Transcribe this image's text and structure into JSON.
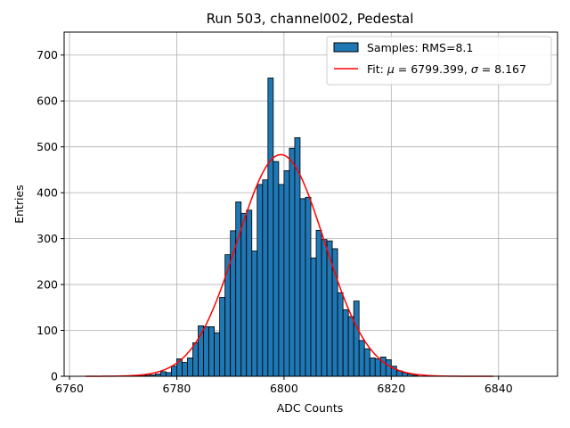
{
  "chart_data": {
    "type": "bar",
    "title": "Run 503, channel002, Pedestal",
    "xlabel": "ADC Counts",
    "ylabel": "Entries",
    "xlim": [
      6759,
      6851
    ],
    "ylim": [
      0,
      750
    ],
    "xticks": [
      6760,
      6780,
      6800,
      6820,
      6840
    ],
    "yticks": [
      0,
      100,
      200,
      300,
      400,
      500,
      600,
      700
    ],
    "grid": true,
    "legend_position": "top-right",
    "bar_color": "#1f77b4",
    "fit_color": "#ff0000",
    "legend": {
      "hist_label": "Samples: RMS=8.1",
      "fit_label_prefix": "Fit: ",
      "mu_symbol": "μ",
      "fit_label_middle": " = 6799.399, ",
      "sigma_symbol": "σ",
      "fit_label_suffix": " = 8.167"
    },
    "histogram": {
      "bin_width": 1,
      "bin_start": [
        6773,
        6774,
        6775,
        6776,
        6777,
        6778,
        6779,
        6780,
        6781,
        6782,
        6783,
        6784,
        6785,
        6786,
        6787,
        6788,
        6789,
        6790,
        6791,
        6792,
        6793,
        6794,
        6795,
        6796,
        6797,
        6798,
        6799,
        6800,
        6801,
        6802,
        6803,
        6804,
        6805,
        6806,
        6807,
        6808,
        6809,
        6810,
        6811,
        6812,
        6813,
        6814,
        6815,
        6816,
        6817,
        6818,
        6819,
        6820,
        6821,
        6822,
        6823,
        6824
      ],
      "counts": [
        1,
        2,
        3,
        5,
        10,
        8,
        22,
        38,
        30,
        40,
        73,
        110,
        108,
        108,
        95,
        172,
        265,
        317,
        380,
        355,
        362,
        273,
        418,
        428,
        650,
        468,
        418,
        448,
        497,
        520,
        387,
        390,
        258,
        318,
        298,
        295,
        278,
        182,
        145,
        130,
        164,
        78,
        60,
        40,
        38,
        42,
        36,
        22,
        12,
        8,
        5,
        2
      ]
    },
    "fit": {
      "mu": 6799.399,
      "sigma": 8.167,
      "amplitude": 483,
      "x_range": [
        6763,
        6839
      ]
    }
  }
}
